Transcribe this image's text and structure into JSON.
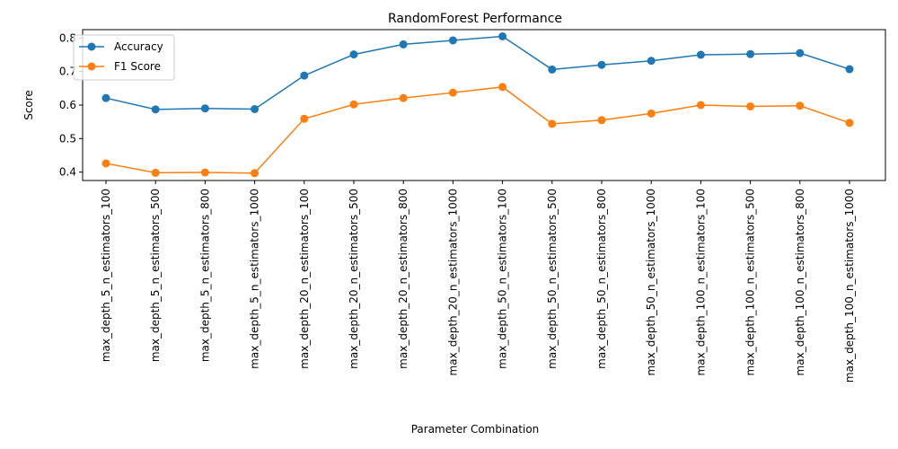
{
  "chart_data": {
    "type": "line",
    "title": "RandomForest Performance",
    "xlabel": "Parameter Combination",
    "ylabel": "Score",
    "ylim": [
      0.375,
      0.825
    ],
    "yticks": [
      0.4,
      0.5,
      0.6,
      0.7,
      0.8
    ],
    "grid": false,
    "legend_position": "upper-left",
    "categories": [
      "max_depth_5_n_estimators_100",
      "max_depth_5_n_estimators_500",
      "max_depth_5_n_estimators_800",
      "max_depth_5_n_estimators_1000",
      "max_depth_20_n_estimators_100",
      "max_depth_20_n_estimators_500",
      "max_depth_20_n_estimators_800",
      "max_depth_20_n_estimators_1000",
      "max_depth_50_n_estimators_100",
      "max_depth_50_n_estimators_500",
      "max_depth_50_n_estimators_800",
      "max_depth_50_n_estimators_1000",
      "max_depth_100_n_estimators_100",
      "max_depth_100_n_estimators_500",
      "max_depth_100_n_estimators_800",
      "max_depth_100_n_estimators_1000"
    ],
    "series": [
      {
        "name": "Accuracy",
        "color": "#1f77b4",
        "values": [
          0.621,
          0.587,
          0.59,
          0.588,
          0.688,
          0.751,
          0.781,
          0.793,
          0.805,
          0.706,
          0.72,
          0.732,
          0.75,
          0.752,
          0.755,
          0.707
        ]
      },
      {
        "name": "F1 Score",
        "color": "#ff7f0e",
        "values": [
          0.426,
          0.398,
          0.399,
          0.397,
          0.559,
          0.602,
          0.621,
          0.637,
          0.654,
          0.544,
          0.555,
          0.575,
          0.6,
          0.596,
          0.598,
          0.547
        ]
      }
    ]
  }
}
